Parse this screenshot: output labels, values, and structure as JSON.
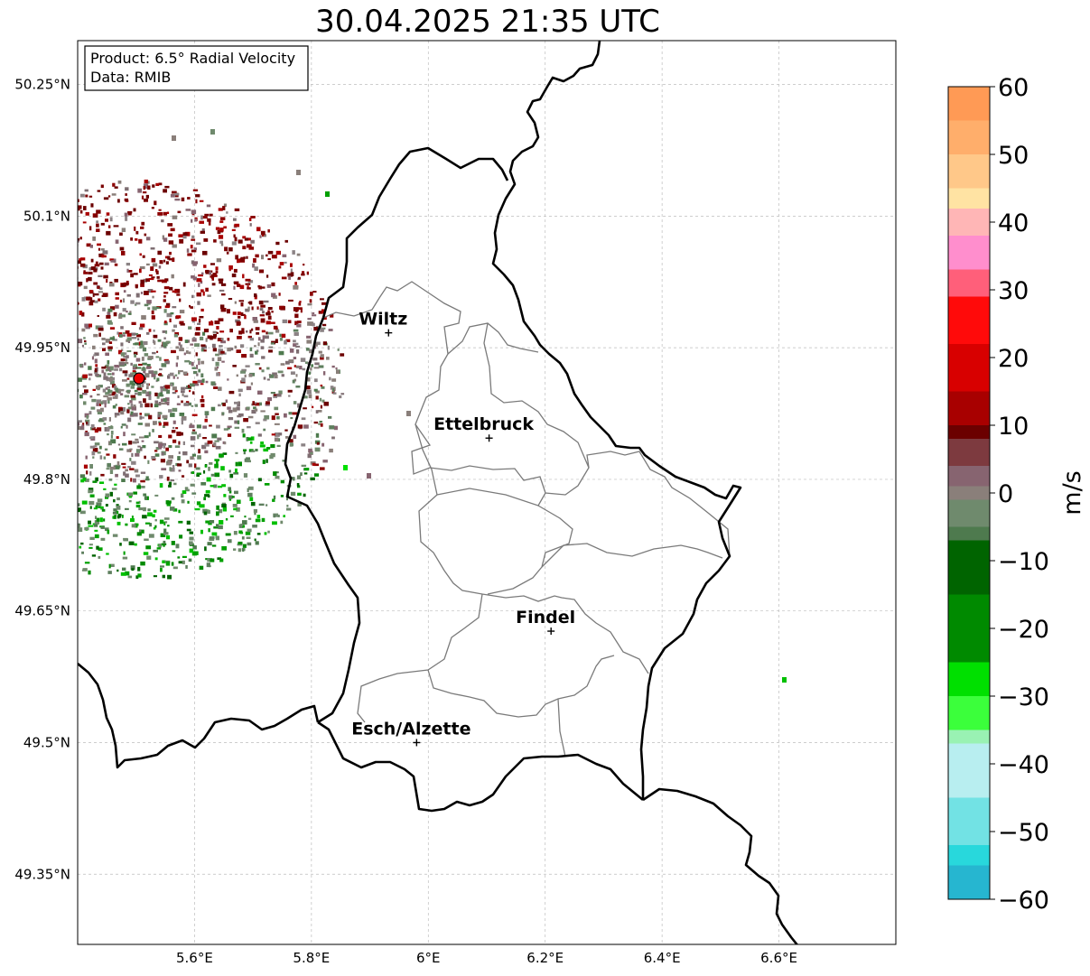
{
  "title": "30.04.2025 21:35 UTC",
  "info_box": {
    "product": "Product: 6.5° Radial Velocity",
    "data": "Data: RMIB"
  },
  "map": {
    "lon_range": [
      5.4,
      6.8
    ],
    "lat_range": [
      49.27,
      50.3
    ],
    "lon_ticks": [
      {
        "value": 5.6,
        "label": "5.6°E"
      },
      {
        "value": 5.8,
        "label": "5.8°E"
      },
      {
        "value": 6.0,
        "label": "6°E"
      },
      {
        "value": 6.2,
        "label": "6.2°E"
      },
      {
        "value": 6.4,
        "label": "6.4°E"
      },
      {
        "value": 6.6,
        "label": "6.6°E"
      }
    ],
    "lat_ticks": [
      {
        "value": 50.25,
        "label": "50.25°N"
      },
      {
        "value": 50.1,
        "label": "50.1°N"
      },
      {
        "value": 49.95,
        "label": "49.95°N"
      },
      {
        "value": 49.8,
        "label": "49.8°N"
      },
      {
        "value": 49.65,
        "label": "49.65°N"
      },
      {
        "value": 49.5,
        "label": "49.5°N"
      },
      {
        "value": 49.35,
        "label": "49.35°N"
      }
    ],
    "gridlines": true,
    "radar_site": {
      "lon": 5.505,
      "lat": 49.915
    },
    "cities": [
      {
        "name": "Wiltz",
        "lon": 5.932,
        "lat": 49.967
      },
      {
        "name": "Ettelbruck",
        "lon": 6.104,
        "lat": 49.847
      },
      {
        "name": "Findel",
        "lon": 6.21,
        "lat": 49.627
      },
      {
        "name": "Esch/Alzette",
        "lon": 5.98,
        "lat": 49.5
      }
    ]
  },
  "colorbar": {
    "label": "m/s",
    "min": -60,
    "max": 60,
    "ticks": [
      {
        "value": 60,
        "label": "60"
      },
      {
        "value": 50,
        "label": "50"
      },
      {
        "value": 40,
        "label": "40"
      },
      {
        "value": 30,
        "label": "30"
      },
      {
        "value": 20,
        "label": "20"
      },
      {
        "value": 10,
        "label": "10"
      },
      {
        "value": 0,
        "label": "0"
      },
      {
        "value": -10,
        "label": "−10"
      },
      {
        "value": -20,
        "label": "−20"
      },
      {
        "value": -30,
        "label": "−30"
      },
      {
        "value": -40,
        "label": "−40"
      },
      {
        "value": -50,
        "label": "−50"
      },
      {
        "value": -60,
        "label": "−60"
      }
    ],
    "stops": [
      {
        "value": 60,
        "color": "#ff9a55"
      },
      {
        "value": 55,
        "color": "#ffae6b"
      },
      {
        "value": 50,
        "color": "#ffc889"
      },
      {
        "value": 45,
        "color": "#ffe3a3"
      },
      {
        "value": 42,
        "color": "#ffb6b6"
      },
      {
        "value": 38,
        "color": "#ff8ecd"
      },
      {
        "value": 33,
        "color": "#ff5f7a"
      },
      {
        "value": 29,
        "color": "#ff0a0a"
      },
      {
        "value": 22,
        "color": "#d80000"
      },
      {
        "value": 15,
        "color": "#a80000"
      },
      {
        "value": 10,
        "color": "#6b0000"
      },
      {
        "value": 8,
        "color": "#7d3a3f"
      },
      {
        "value": 4,
        "color": "#876470"
      },
      {
        "value": 1,
        "color": "#8a7f7a"
      },
      {
        "value": -1,
        "color": "#6f8a6d"
      },
      {
        "value": -5,
        "color": "#4e7a4e"
      },
      {
        "value": -7,
        "color": "#006400"
      },
      {
        "value": -15,
        "color": "#008a00"
      },
      {
        "value": -25,
        "color": "#00e000"
      },
      {
        "value": -30,
        "color": "#3bff3b"
      },
      {
        "value": -35,
        "color": "#99f2b3"
      },
      {
        "value": -37,
        "color": "#b8eef0"
      },
      {
        "value": -45,
        "color": "#72e2e4"
      },
      {
        "value": -52,
        "color": "#28d8dc"
      },
      {
        "value": -55,
        "color": "#26b6d0"
      },
      {
        "value": -60,
        "color": "#1f7ec0"
      }
    ]
  }
}
